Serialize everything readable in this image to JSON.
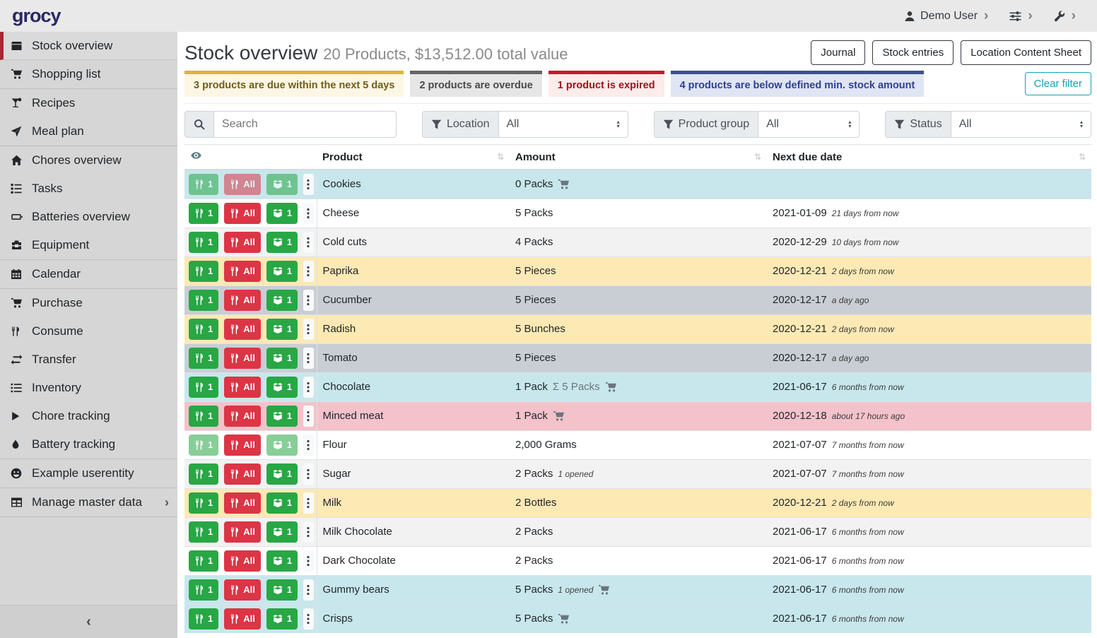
{
  "navbar": {
    "logo": "grocy",
    "user_label": "Demo User",
    "icons": [
      "user-icon",
      "sliders-icon",
      "wrench-icon"
    ]
  },
  "sidebar": {
    "groups": [
      {
        "items": [
          {
            "icon": "box-icon",
            "label": "Stock overview",
            "active": true
          },
          {
            "icon": "cart-icon",
            "label": "Shopping list"
          }
        ]
      },
      {
        "items": [
          {
            "icon": "cocktail-icon",
            "label": "Recipes"
          },
          {
            "icon": "paper-plane-icon",
            "label": "Meal plan"
          }
        ]
      },
      {
        "items": [
          {
            "icon": "home-icon",
            "label": "Chores overview"
          },
          {
            "icon": "tasks-icon",
            "label": "Tasks"
          },
          {
            "icon": "battery-icon",
            "label": "Batteries overview"
          },
          {
            "icon": "toolbox-icon",
            "label": "Equipment"
          }
        ]
      },
      {
        "items": [
          {
            "icon": "calendar-icon",
            "label": "Calendar"
          }
        ]
      },
      {
        "items": [
          {
            "icon": "cart-icon",
            "label": "Purchase"
          },
          {
            "icon": "utensils-icon",
            "label": "Consume"
          },
          {
            "icon": "transfer-icon",
            "label": "Transfer"
          },
          {
            "icon": "list-icon",
            "label": "Inventory"
          },
          {
            "icon": "play-icon",
            "label": "Chore tracking"
          },
          {
            "icon": "drop-icon",
            "label": "Battery tracking"
          }
        ]
      },
      {
        "items": [
          {
            "icon": "smiley-icon",
            "label": "Example userentity"
          }
        ]
      },
      {
        "items": [
          {
            "icon": "table-icon",
            "label": "Manage master data",
            "chevron": true
          }
        ]
      }
    ]
  },
  "header": {
    "title": "Stock overview",
    "subtitle": "20 Products, $13,512.00 total value",
    "buttons": [
      "Journal",
      "Stock entries",
      "Location Content Sheet"
    ]
  },
  "banners": [
    {
      "type": "due",
      "text": "3 products are due within the next 5 days"
    },
    {
      "type": "overdue",
      "text": "2 products are overdue"
    },
    {
      "type": "expired",
      "text": "1 product is expired"
    },
    {
      "type": "belowmin",
      "text": "4 products are below defined min. stock amount"
    }
  ],
  "filters": {
    "search_placeholder": "Search",
    "clear_label": "Clear filter",
    "dropdowns": [
      {
        "label": "Location",
        "value": "All"
      },
      {
        "label": "Product group",
        "value": "All"
      },
      {
        "label": "Status",
        "value": "All"
      }
    ]
  },
  "table": {
    "columns": [
      "Product",
      "Amount",
      "Next due date"
    ],
    "action_buttons": {
      "consume_one": "1",
      "consume_all": "All",
      "open_one": "1"
    },
    "rows": [
      {
        "product": "Cookies",
        "amount": "0 Packs",
        "cart": true,
        "due": "",
        "due_rel": "",
        "row_color": "blue",
        "disabled": [
          "consume_one",
          "consume_all",
          "open_one"
        ]
      },
      {
        "product": "Cheese",
        "amount": "5 Packs",
        "due": "2021-01-09",
        "due_rel": "21 days from now",
        "row_color": "white"
      },
      {
        "product": "Cold cuts",
        "amount": "4 Packs",
        "due": "2020-12-29",
        "due_rel": "10 days from now",
        "row_color": "stripe"
      },
      {
        "product": "Paprika",
        "amount": "5 Pieces",
        "due": "2020-12-21",
        "due_rel": "2 days from now",
        "row_color": "yellow"
      },
      {
        "product": "Cucumber",
        "amount": "5 Pieces",
        "due": "2020-12-17",
        "due_rel": "a day ago",
        "row_color": "gray"
      },
      {
        "product": "Radish",
        "amount": "5 Bunches",
        "due": "2020-12-21",
        "due_rel": "2 days from now",
        "row_color": "yellow"
      },
      {
        "product": "Tomato",
        "amount": "5 Pieces",
        "due": "2020-12-17",
        "due_rel": "a day ago",
        "row_color": "gray"
      },
      {
        "product": "Chocolate",
        "amount": "1 Pack",
        "amount_extra": "Σ 5 Packs",
        "cart": true,
        "due": "2021-06-17",
        "due_rel": "6 months from now",
        "row_color": "blue"
      },
      {
        "product": "Minced meat",
        "amount": "1 Pack",
        "cart": true,
        "due": "2020-12-18",
        "due_rel": "about 17 hours ago",
        "row_color": "pink"
      },
      {
        "product": "Flour",
        "amount": "2,000 Grams",
        "due": "2021-07-07",
        "due_rel": "7 months from now",
        "row_color": "white",
        "disabled": [
          "consume_one",
          "open_one"
        ]
      },
      {
        "product": "Sugar",
        "amount": "2 Packs",
        "amount_note": "1 opened",
        "due": "2021-07-07",
        "due_rel": "7 months from now",
        "row_color": "stripe"
      },
      {
        "product": "Milk",
        "amount": "2 Bottles",
        "due": "2020-12-21",
        "due_rel": "2 days from now",
        "row_color": "yellow"
      },
      {
        "product": "Milk Chocolate",
        "amount": "2 Packs",
        "due": "2021-06-17",
        "due_rel": "6 months from now",
        "row_color": "stripe"
      },
      {
        "product": "Dark Chocolate",
        "amount": "2 Packs",
        "due": "2021-06-17",
        "due_rel": "6 months from now",
        "row_color": "white"
      },
      {
        "product": "Gummy bears",
        "amount": "5 Packs",
        "amount_note": "1 opened",
        "cart": true,
        "due": "2021-06-17",
        "due_rel": "6 months from now",
        "row_color": "blue"
      },
      {
        "product": "Crisps",
        "amount": "5 Packs",
        "cart": true,
        "due": "2021-06-17",
        "due_rel": "6 months from now",
        "row_color": "blue"
      }
    ]
  },
  "colors": {
    "brand": "#2b2864",
    "sidebar_active_border": "#a52834",
    "button_green": "#28a745",
    "button_red": "#dc3545",
    "info_teal": "#17a2b8",
    "row_below_min_stock": "#c7e7ec",
    "row_due_soon": "#fce9b4",
    "row_overdue": "#c9ced4",
    "row_expired": "#f3c2ca"
  }
}
